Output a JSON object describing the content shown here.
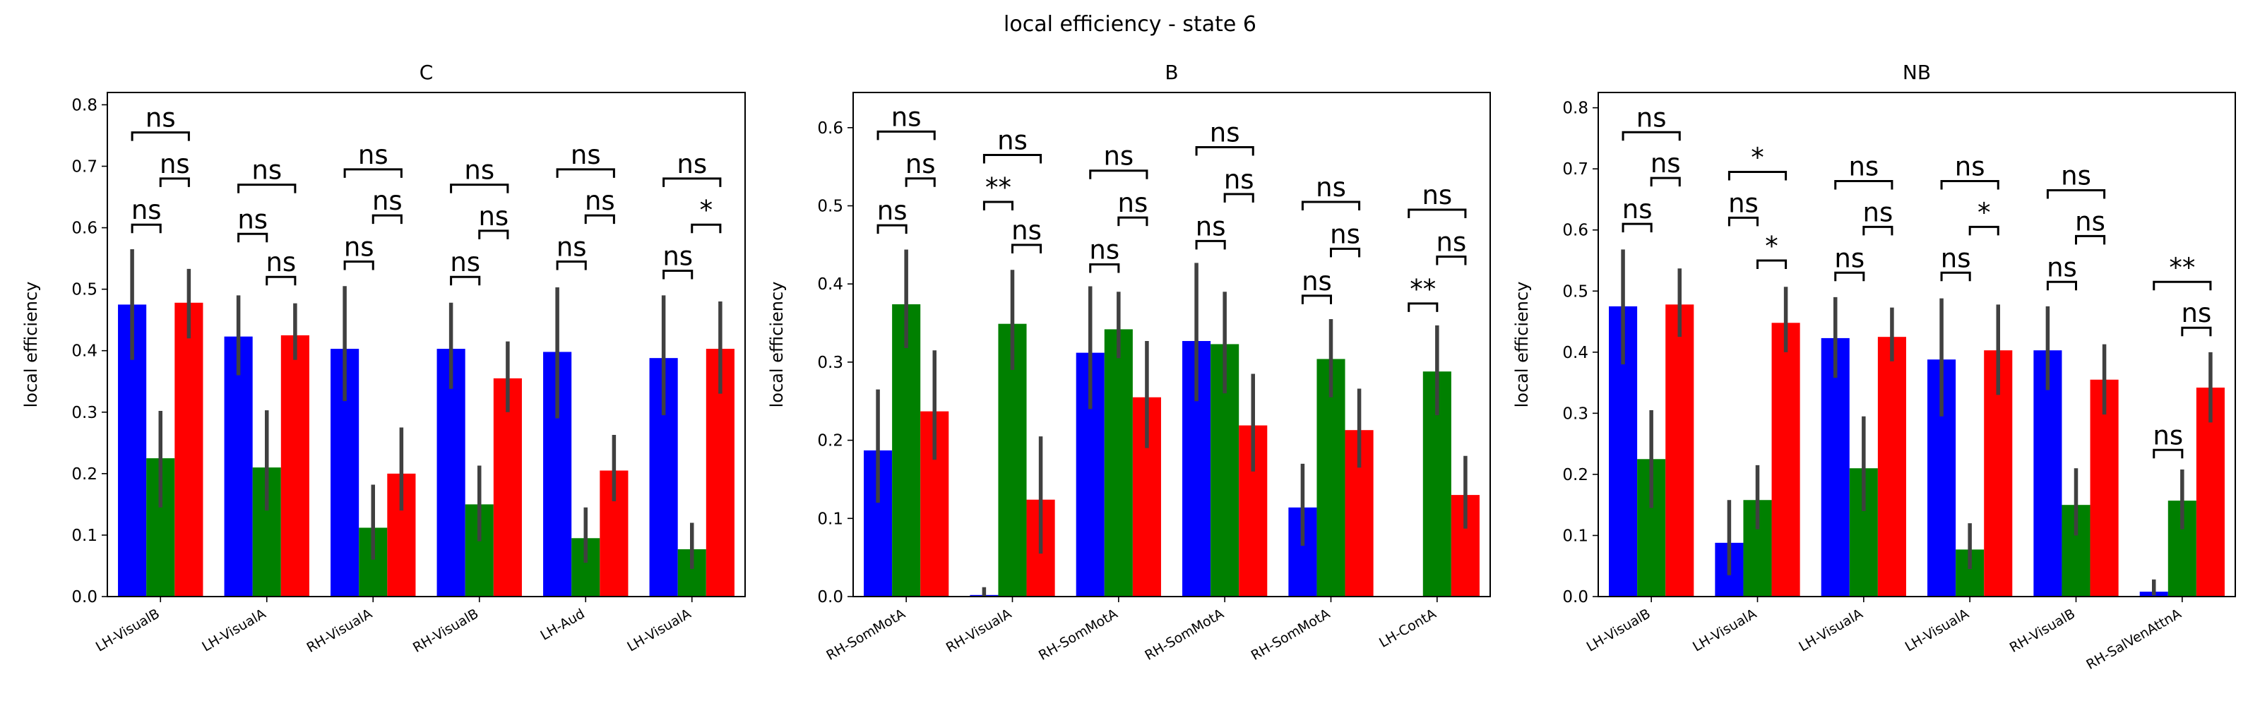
{
  "suptitle": "local efficiency - state 6",
  "colors": {
    "bar1": "#0000ff",
    "bar2": "#008000",
    "bar3": "#ff0000",
    "errorbar": "#404040"
  },
  "chart_data": [
    {
      "type": "bar",
      "title": "C",
      "ylabel": "local efficiency",
      "xlabel": "",
      "ylim": [
        0,
        0.82
      ],
      "yticks": [
        0.0,
        0.1,
        0.2,
        0.3,
        0.4,
        0.5,
        0.6,
        0.7,
        0.8
      ],
      "tick_labels": [
        "0.0",
        "0.1",
        "0.2",
        "0.3",
        "0.4",
        "0.5",
        "0.6",
        "0.7",
        "0.8"
      ],
      "categories": [
        "LH-VisualB",
        "LH-VisualA",
        "RH-VisualA",
        "RH-VisualB",
        "LH-Aud",
        "LH-VisualA"
      ],
      "series": [
        {
          "values": [
            0.475,
            0.423,
            0.403,
            0.403,
            0.398,
            0.388
          ],
          "err_low": [
            0.385,
            0.36,
            0.318,
            0.338,
            0.29,
            0.295
          ],
          "err_high": [
            0.565,
            0.49,
            0.505,
            0.478,
            0.503,
            0.49
          ]
        },
        {
          "values": [
            0.225,
            0.21,
            0.112,
            0.15,
            0.095,
            0.077
          ],
          "err_low": [
            0.145,
            0.14,
            0.06,
            0.09,
            0.055,
            0.045
          ],
          "err_high": [
            0.302,
            0.303,
            0.182,
            0.213,
            0.145,
            0.12
          ]
        },
        {
          "values": [
            0.478,
            0.425,
            0.2,
            0.355,
            0.205,
            0.403
          ],
          "err_low": [
            0.42,
            0.385,
            0.14,
            0.3,
            0.155,
            0.33
          ],
          "err_high": [
            0.533,
            0.477,
            0.275,
            0.415,
            0.263,
            0.48
          ]
        }
      ],
      "annotations": [
        {
          "group": 0,
          "pair": "1-3",
          "y": 0.755,
          "text": "ns"
        },
        {
          "group": 0,
          "pair": "1-2",
          "y": 0.605,
          "text": "ns"
        },
        {
          "group": 0,
          "pair": "2-3",
          "y": 0.68,
          "text": "ns"
        },
        {
          "group": 1,
          "pair": "1-3",
          "y": 0.67,
          "text": "ns"
        },
        {
          "group": 1,
          "pair": "1-2",
          "y": 0.59,
          "text": "ns"
        },
        {
          "group": 1,
          "pair": "2-3",
          "y": 0.52,
          "text": "ns"
        },
        {
          "group": 2,
          "pair": "1-3",
          "y": 0.695,
          "text": "ns"
        },
        {
          "group": 2,
          "pair": "1-2",
          "y": 0.545,
          "text": "ns"
        },
        {
          "group": 2,
          "pair": "2-3",
          "y": 0.62,
          "text": "ns"
        },
        {
          "group": 3,
          "pair": "1-3",
          "y": 0.67,
          "text": "ns"
        },
        {
          "group": 3,
          "pair": "1-2",
          "y": 0.52,
          "text": "ns"
        },
        {
          "group": 3,
          "pair": "2-3",
          "y": 0.595,
          "text": "ns"
        },
        {
          "group": 4,
          "pair": "1-3",
          "y": 0.695,
          "text": "ns"
        },
        {
          "group": 4,
          "pair": "1-2",
          "y": 0.545,
          "text": "ns"
        },
        {
          "group": 4,
          "pair": "2-3",
          "y": 0.62,
          "text": "ns"
        },
        {
          "group": 5,
          "pair": "1-3",
          "y": 0.68,
          "text": "ns"
        },
        {
          "group": 5,
          "pair": "1-2",
          "y": 0.53,
          "text": "ns"
        },
        {
          "group": 5,
          "pair": "2-3",
          "y": 0.605,
          "text": "*"
        }
      ]
    },
    {
      "type": "bar",
      "title": "B",
      "ylabel": "local efficiency",
      "xlabel": "",
      "ylim": [
        0,
        0.645
      ],
      "yticks": [
        0.0,
        0.1,
        0.2,
        0.3,
        0.4,
        0.5,
        0.6
      ],
      "tick_labels": [
        "0.0",
        "0.1",
        "0.2",
        "0.3",
        "0.4",
        "0.5",
        "0.6"
      ],
      "categories": [
        "RH-SomMotA",
        "RH-VisualA",
        "RH-SomMotA",
        "RH-SomMotA",
        "RH-SomMotA",
        "LH-ContA"
      ],
      "series": [
        {
          "values": [
            0.187,
            0.002,
            0.312,
            0.327,
            0.114,
            0.0
          ],
          "err_low": [
            0.12,
            0.0,
            0.24,
            0.25,
            0.065,
            null
          ],
          "err_high": [
            0.265,
            0.012,
            0.397,
            0.427,
            0.17,
            null
          ]
        },
        {
          "values": [
            0.374,
            0.349,
            0.342,
            0.323,
            0.304,
            0.288
          ],
          "err_low": [
            0.318,
            0.29,
            0.305,
            0.26,
            0.255,
            0.232
          ],
          "err_high": [
            0.444,
            0.418,
            0.39,
            0.39,
            0.355,
            0.347
          ]
        },
        {
          "values": [
            0.237,
            0.124,
            0.255,
            0.219,
            0.213,
            0.13
          ],
          "err_low": [
            0.175,
            0.055,
            0.19,
            0.16,
            0.165,
            0.087
          ],
          "err_high": [
            0.315,
            0.205,
            0.327,
            0.285,
            0.266,
            0.18
          ]
        }
      ],
      "annotations": [
        {
          "group": 0,
          "pair": "1-3",
          "y": 0.595,
          "text": "ns"
        },
        {
          "group": 0,
          "pair": "1-2",
          "y": 0.475,
          "text": "ns"
        },
        {
          "group": 0,
          "pair": "2-3",
          "y": 0.535,
          "text": "ns"
        },
        {
          "group": 1,
          "pair": "1-3",
          "y": 0.565,
          "text": "ns"
        },
        {
          "group": 1,
          "pair": "1-2",
          "y": 0.505,
          "text": "**"
        },
        {
          "group": 1,
          "pair": "2-3",
          "y": 0.45,
          "text": "ns"
        },
        {
          "group": 2,
          "pair": "1-3",
          "y": 0.545,
          "text": "ns"
        },
        {
          "group": 2,
          "pair": "1-2",
          "y": 0.425,
          "text": "ns"
        },
        {
          "group": 2,
          "pair": "2-3",
          "y": 0.485,
          "text": "ns"
        },
        {
          "group": 3,
          "pair": "1-3",
          "y": 0.575,
          "text": "ns"
        },
        {
          "group": 3,
          "pair": "1-2",
          "y": 0.455,
          "text": "ns"
        },
        {
          "group": 3,
          "pair": "2-3",
          "y": 0.515,
          "text": "ns"
        },
        {
          "group": 4,
          "pair": "1-3",
          "y": 0.505,
          "text": "ns"
        },
        {
          "group": 4,
          "pair": "1-2",
          "y": 0.385,
          "text": "ns"
        },
        {
          "group": 4,
          "pair": "2-3",
          "y": 0.445,
          "text": "ns"
        },
        {
          "group": 5,
          "pair": "1-3",
          "y": 0.495,
          "text": "ns"
        },
        {
          "group": 5,
          "pair": "1-2",
          "y": 0.375,
          "text": "**"
        },
        {
          "group": 5,
          "pair": "2-3",
          "y": 0.435,
          "text": "ns"
        }
      ]
    },
    {
      "type": "bar",
      "title": "NB",
      "ylabel": "local efficiency",
      "xlabel": "",
      "ylim": [
        0,
        0.825
      ],
      "yticks": [
        0.0,
        0.1,
        0.2,
        0.3,
        0.4,
        0.5,
        0.6,
        0.7,
        0.8
      ],
      "tick_labels": [
        "0.0",
        "0.1",
        "0.2",
        "0.3",
        "0.4",
        "0.5",
        "0.6",
        "0.7",
        "0.8"
      ],
      "categories": [
        "LH-VisualB",
        "LH-VisualA",
        "LH-VisualA",
        "LH-VisualA",
        "RH-VisualB",
        "RH-SalVenAttnA"
      ],
      "series": [
        {
          "values": [
            0.475,
            0.088,
            0.423,
            0.388,
            0.403,
            0.008
          ],
          "err_low": [
            0.38,
            0.035,
            0.358,
            0.295,
            0.338,
            0.002
          ],
          "err_high": [
            0.568,
            0.158,
            0.49,
            0.488,
            0.475,
            0.028
          ]
        },
        {
          "values": [
            0.225,
            0.158,
            0.21,
            0.077,
            0.15,
            0.157
          ],
          "err_low": [
            0.145,
            0.11,
            0.14,
            0.045,
            0.1,
            0.11
          ],
          "err_high": [
            0.305,
            0.215,
            0.295,
            0.12,
            0.21,
            0.208
          ]
        },
        {
          "values": [
            0.478,
            0.448,
            0.425,
            0.403,
            0.355,
            0.342
          ],
          "err_low": [
            0.425,
            0.4,
            0.385,
            0.33,
            0.298,
            0.285
          ],
          "err_high": [
            0.537,
            0.507,
            0.473,
            0.478,
            0.413,
            0.4
          ]
        }
      ],
      "annotations": [
        {
          "group": 0,
          "pair": "1-3",
          "y": 0.76,
          "text": "ns"
        },
        {
          "group": 0,
          "pair": "1-2",
          "y": 0.61,
          "text": "ns"
        },
        {
          "group": 0,
          "pair": "2-3",
          "y": 0.685,
          "text": "ns"
        },
        {
          "group": 1,
          "pair": "1-3",
          "y": 0.695,
          "text": "*"
        },
        {
          "group": 1,
          "pair": "1-2",
          "y": 0.62,
          "text": "ns"
        },
        {
          "group": 1,
          "pair": "2-3",
          "y": 0.55,
          "text": "*"
        },
        {
          "group": 2,
          "pair": "1-3",
          "y": 0.68,
          "text": "ns"
        },
        {
          "group": 2,
          "pair": "1-2",
          "y": 0.53,
          "text": "ns"
        },
        {
          "group": 2,
          "pair": "2-3",
          "y": 0.605,
          "text": "ns"
        },
        {
          "group": 3,
          "pair": "1-3",
          "y": 0.68,
          "text": "ns"
        },
        {
          "group": 3,
          "pair": "1-2",
          "y": 0.53,
          "text": "ns"
        },
        {
          "group": 3,
          "pair": "2-3",
          "y": 0.605,
          "text": "*"
        },
        {
          "group": 4,
          "pair": "1-3",
          "y": 0.665,
          "text": "ns"
        },
        {
          "group": 4,
          "pair": "1-2",
          "y": 0.515,
          "text": "ns"
        },
        {
          "group": 4,
          "pair": "2-3",
          "y": 0.59,
          "text": "ns"
        },
        {
          "group": 5,
          "pair": "1-3",
          "y": 0.515,
          "text": "**"
        },
        {
          "group": 5,
          "pair": "1-2",
          "y": 0.24,
          "text": "ns"
        },
        {
          "group": 5,
          "pair": "2-3",
          "y": 0.44,
          "text": "ns"
        }
      ]
    }
  ]
}
